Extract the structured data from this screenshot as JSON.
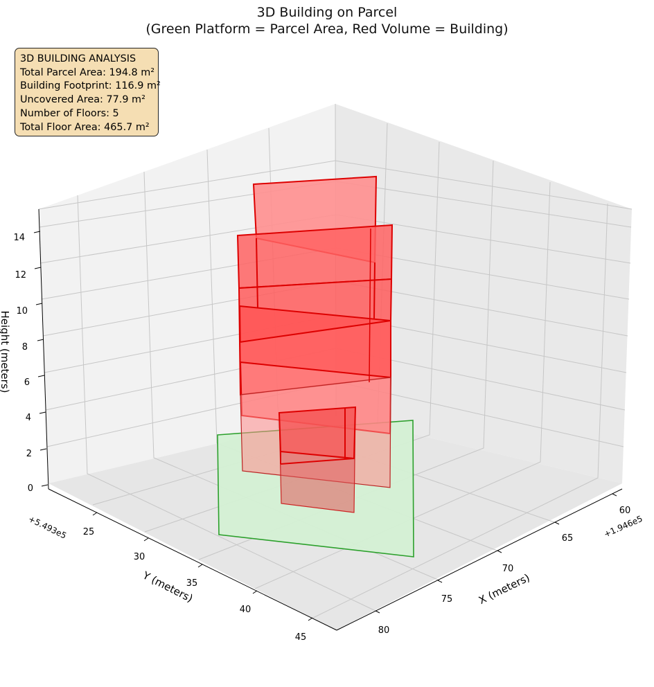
{
  "title_line1": "3D Building on Parcel",
  "title_line2": "(Green Platform = Parcel Area, Red Volume = Building)",
  "info_box": {
    "heading": "3D BUILDING ANALYSIS",
    "total_parcel_area": "Total Parcel Area: 194.8 m²",
    "building_footprint": "Building Footprint: 116.9 m²",
    "uncovered_area": "Uncovered Area: 77.9 m²",
    "number_of_floors": "Number of Floors: 5",
    "total_floor_area": "Total Floor Area: 465.7 m²"
  },
  "colors": {
    "parcel_fill": "#d4f0d4",
    "parcel_edge": "#2ca02c",
    "building_fill": "#ff4d4d",
    "building_edge": "#dd0000",
    "pane": "#f2f2f2",
    "grid": "#c8c8c8",
    "info_box_bg": "#f5deb3"
  },
  "chart_data": {
    "type": "3d-surface",
    "title": "3D Building on Parcel\n(Green Platform = Parcel Area, Red Volume = Building)",
    "x_axis": {
      "label": "X (meters)",
      "offset_text": "+1.946e5",
      "ticks": [
        "60",
        "65",
        "70",
        "75",
        "80"
      ],
      "range": [
        58,
        82
      ]
    },
    "y_axis": {
      "label": "Y (meters)",
      "offset_text": "+5.493e5",
      "ticks": [
        "25",
        "30",
        "35",
        "40",
        "45"
      ],
      "range": [
        21,
        46
      ]
    },
    "z_axis": {
      "label": "Height (meters)",
      "ticks": [
        "0",
        "2",
        "4",
        "6",
        "8",
        "10",
        "12",
        "14"
      ],
      "range": [
        0,
        15
      ]
    },
    "parcel": {
      "area_m2": 194.8,
      "height": 0
    },
    "building": {
      "footprint_m2": 116.9,
      "floors": 5,
      "total_floor_area_m2": 465.7,
      "height_m": 15
    },
    "grid": true,
    "legend": "none"
  }
}
